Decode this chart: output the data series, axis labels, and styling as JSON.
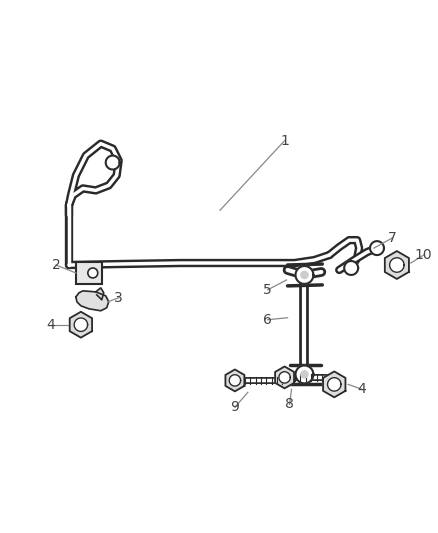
{
  "bg_color": "#ffffff",
  "line_color": "#2a2a2a",
  "label_color": "#444444",
  "line_color_leader": "#888888",
  "fig_width": 4.38,
  "fig_height": 5.33,
  "dpi": 100
}
